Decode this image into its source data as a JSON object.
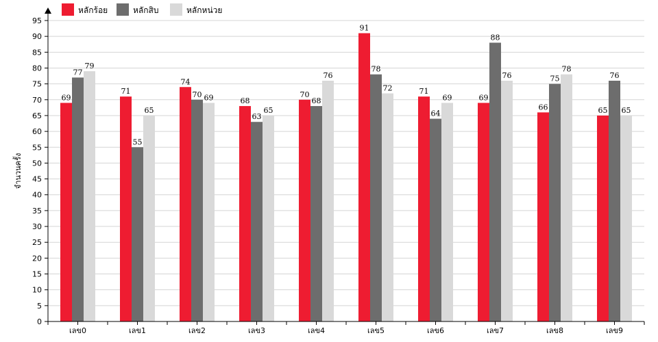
{
  "chart_data": {
    "type": "bar",
    "categories": [
      "เลข0",
      "เลข1",
      "เลข2",
      "เลข3",
      "เลข4",
      "เลข5",
      "เลข6",
      "เลข7",
      "เลข8",
      "เลข9"
    ],
    "series": [
      {
        "name": "หลักร้อย",
        "color": "#ee1c31",
        "values": [
          69,
          71,
          74,
          68,
          70,
          91,
          71,
          69,
          66,
          65
        ]
      },
      {
        "name": "หลักสิบ",
        "color": "#6d6d6d",
        "values": [
          77,
          55,
          70,
          63,
          68,
          78,
          64,
          88,
          75,
          76
        ]
      },
      {
        "name": "หลักหน่วย",
        "color": "#d9d9d9",
        "values": [
          79,
          65,
          69,
          65,
          76,
          72,
          69,
          76,
          78,
          65
        ]
      }
    ],
    "title": "",
    "xlabel": "",
    "ylabel": "จำนวนครั้ง",
    "ylim": [
      0,
      95
    ],
    "ytick_step": 5,
    "grid": true,
    "legend_position": "top-left"
  }
}
